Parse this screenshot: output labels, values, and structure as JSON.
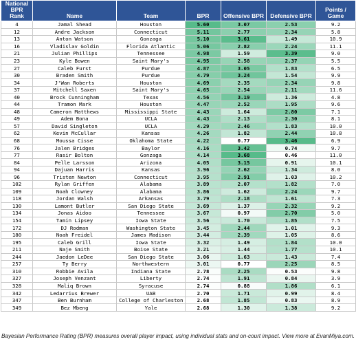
{
  "header": {
    "rank": "National BPR Rank",
    "name": "Name",
    "team": "Team",
    "bpr": "BPR",
    "obpr": "Offensive BPR",
    "dbpr": "Defensive BPR",
    "ppg": "Points / Game"
  },
  "colors": {
    "header_bg": "#2f5597",
    "scale_low": "#ffffff",
    "scale_high": "#57bb8a"
  },
  "rows": [
    {
      "rank": "4",
      "name": "Jamal Shead",
      "team": "Houston",
      "bpr": "5.60",
      "obpr": "3.07",
      "dbpr": "2.53",
      "ppg": "9.2"
    },
    {
      "rank": "12",
      "name": "Andre Jackson",
      "team": "Connecticut",
      "bpr": "5.11",
      "obpr": "2.77",
      "dbpr": "2.34",
      "ppg": "5.8"
    },
    {
      "rank": "13",
      "name": "Anton Watson",
      "team": "Gonzaga",
      "bpr": "5.10",
      "obpr": "3.61",
      "dbpr": "1.49",
      "ppg": "10.9"
    },
    {
      "rank": "16",
      "name": "Vladislav Goldin",
      "team": "Florida Atlantic",
      "bpr": "5.06",
      "obpr": "2.82",
      "dbpr": "2.24",
      "ppg": "11.1"
    },
    {
      "rank": "21",
      "name": "Julian Phillips",
      "team": "Tennessee",
      "bpr": "4.98",
      "obpr": "1.59",
      "dbpr": "3.39",
      "ppg": "9.0"
    },
    {
      "rank": "23",
      "name": "Kyle Bowen",
      "team": "Saint Mary's",
      "bpr": "4.95",
      "obpr": "2.58",
      "dbpr": "2.37",
      "ppg": "5.5"
    },
    {
      "rank": "27",
      "name": "Caleb Furst",
      "team": "Purdue",
      "bpr": "4.87",
      "obpr": "3.05",
      "dbpr": "1.83",
      "ppg": "6.5"
    },
    {
      "rank": "30",
      "name": "Braden Smith",
      "team": "Purdue",
      "bpr": "4.79",
      "obpr": "3.24",
      "dbpr": "1.54",
      "ppg": "9.9"
    },
    {
      "rank": "34",
      "name": "J'Wan Roberts",
      "team": "Houston",
      "bpr": "4.69",
      "obpr": "2.35",
      "dbpr": "2.34",
      "ppg": "9.8"
    },
    {
      "rank": "37",
      "name": "Mitchell Saxen",
      "team": "Saint Mary's",
      "bpr": "4.65",
      "obpr": "2.54",
      "dbpr": "2.11",
      "ppg": "11.6"
    },
    {
      "rank": "40",
      "name": "Brock Cunningham",
      "team": "Texas",
      "bpr": "4.56",
      "obpr": "3.19",
      "dbpr": "1.36",
      "ppg": "4.8"
    },
    {
      "rank": "44",
      "name": "Tramon Mark",
      "team": "Houston",
      "bpr": "4.47",
      "obpr": "2.52",
      "dbpr": "1.95",
      "ppg": "9.6"
    },
    {
      "rank": "48",
      "name": "Cameron Matthews",
      "team": "Mississippi State",
      "bpr": "4.43",
      "obpr": "1.64",
      "dbpr": "2.80",
      "ppg": "7.1"
    },
    {
      "rank": "49",
      "name": "Adem Bona",
      "team": "UCLA",
      "bpr": "4.43",
      "obpr": "2.13",
      "dbpr": "2.30",
      "ppg": "8.1"
    },
    {
      "rank": "57",
      "name": "David Singleton",
      "team": "UCLA",
      "bpr": "4.29",
      "obpr": "2.46",
      "dbpr": "1.83",
      "ppg": "10.0"
    },
    {
      "rank": "62",
      "name": "Kevin McCullar",
      "team": "Kansas",
      "bpr": "4.26",
      "obpr": "1.82",
      "dbpr": "2.44",
      "ppg": "10.8"
    },
    {
      "rank": "68",
      "name": "Moussa Cisse",
      "team": "Oklahoma State",
      "bpr": "4.22",
      "obpr": "0.77",
      "dbpr": "3.46",
      "ppg": "6.9"
    },
    {
      "rank": "76",
      "name": "Jalen Bridges",
      "team": "Baylor",
      "bpr": "4.16",
      "obpr": "3.42",
      "dbpr": "0.74",
      "ppg": "9.7"
    },
    {
      "rank": "77",
      "name": "Rasir Bolton",
      "team": "Gonzaga",
      "bpr": "4.14",
      "obpr": "3.68",
      "dbpr": "0.46",
      "ppg": "11.0"
    },
    {
      "rank": "84",
      "name": "Pelle Larsson",
      "team": "Arizona",
      "bpr": "4.05",
      "obpr": "3.15",
      "dbpr": "0.91",
      "ppg": "10.1"
    },
    {
      "rank": "94",
      "name": "Dajuan Harris",
      "team": "Kansas",
      "bpr": "3.96",
      "obpr": "2.62",
      "dbpr": "1.34",
      "ppg": "8.0"
    },
    {
      "rank": "96",
      "name": "Tristen Newton",
      "team": "Connecticut",
      "bpr": "3.95",
      "obpr": "2.91",
      "dbpr": "1.03",
      "ppg": "10.2"
    },
    {
      "rank": "102",
      "name": "Rylan Griffen",
      "team": "Alabama",
      "bpr": "3.89",
      "obpr": "2.07",
      "dbpr": "1.82",
      "ppg": "7.0"
    },
    {
      "rank": "109",
      "name": "Noah Clowney",
      "team": "Alabama",
      "bpr": "3.86",
      "obpr": "1.62",
      "dbpr": "2.24",
      "ppg": "9.7"
    },
    {
      "rank": "118",
      "name": "Jordan Walsh",
      "team": "Arkansas",
      "bpr": "3.79",
      "obpr": "2.18",
      "dbpr": "1.61",
      "ppg": "7.3"
    },
    {
      "rank": "130",
      "name": "Lamont Butler",
      "team": "San Diego State",
      "bpr": "3.69",
      "obpr": "1.37",
      "dbpr": "2.32",
      "ppg": "9.2"
    },
    {
      "rank": "134",
      "name": "Jonas Aidoo",
      "team": "Tennessee",
      "bpr": "3.67",
      "obpr": "0.97",
      "dbpr": "2.70",
      "ppg": "5.0"
    },
    {
      "rank": "154",
      "name": "Tamin Lipsey",
      "team": "Iowa State",
      "bpr": "3.56",
      "obpr": "1.70",
      "dbpr": "1.85",
      "ppg": "7.5"
    },
    {
      "rank": "172",
      "name": "DJ Rodman",
      "team": "Washington State",
      "bpr": "3.45",
      "obpr": "2.44",
      "dbpr": "1.01",
      "ppg": "9.3"
    },
    {
      "rank": "180",
      "name": "Noah Freidel",
      "team": "James Madison",
      "bpr": "3.44",
      "obpr": "2.39",
      "dbpr": "1.05",
      "ppg": "8.6"
    },
    {
      "rank": "195",
      "name": "Caleb Grill",
      "team": "Iowa State",
      "bpr": "3.32",
      "obpr": "1.49",
      "dbpr": "1.84",
      "ppg": "10.0"
    },
    {
      "rank": "211",
      "name": "Naje Smith",
      "team": "Boise State",
      "bpr": "3.21",
      "obpr": "1.44",
      "dbpr": "1.77",
      "ppg": "10.1"
    },
    {
      "rank": "244",
      "name": "Jaedon LeDee",
      "team": "San Diego State",
      "bpr": "3.06",
      "obpr": "1.63",
      "dbpr": "1.43",
      "ppg": "7.4"
    },
    {
      "rank": "257",
      "name": "Ty Berry",
      "team": "Northwestern",
      "bpr": "3.01",
      "obpr": "0.77",
      "dbpr": "2.25",
      "ppg": "8.5"
    },
    {
      "rank": "310",
      "name": "Robbie Avila",
      "team": "Indiana State",
      "bpr": "2.78",
      "obpr": "2.25",
      "dbpr": "0.53",
      "ppg": "9.8"
    },
    {
      "rank": "327",
      "name": "Joseph Venzant",
      "team": "Liberty",
      "bpr": "2.74",
      "obpr": "1.91",
      "dbpr": "0.84",
      "ppg": "3.9"
    },
    {
      "rank": "328",
      "name": "Maliq Brown",
      "team": "Syracuse",
      "bpr": "2.74",
      "obpr": "0.88",
      "dbpr": "1.86",
      "ppg": "6.1"
    },
    {
      "rank": "342",
      "name": "Ledarrius Brewer",
      "team": "UAB",
      "bpr": "2.70",
      "obpr": "1.71",
      "dbpr": "0.99",
      "ppg": "8.4"
    },
    {
      "rank": "347",
      "name": "Ben Burnham",
      "team": "College of Charleston",
      "bpr": "2.68",
      "obpr": "1.85",
      "dbpr": "0.83",
      "ppg": "8.9"
    },
    {
      "rank": "349",
      "name": "Bez Mbeng",
      "team": "Yale",
      "bpr": "2.68",
      "obpr": "1.30",
      "dbpr": "1.38",
      "ppg": "9.2"
    }
  ],
  "footer": "Bayesian Performance Rating (BPR) measures overall player impact, using individual stats and on-court impact. View more at EvanMiya.com."
}
